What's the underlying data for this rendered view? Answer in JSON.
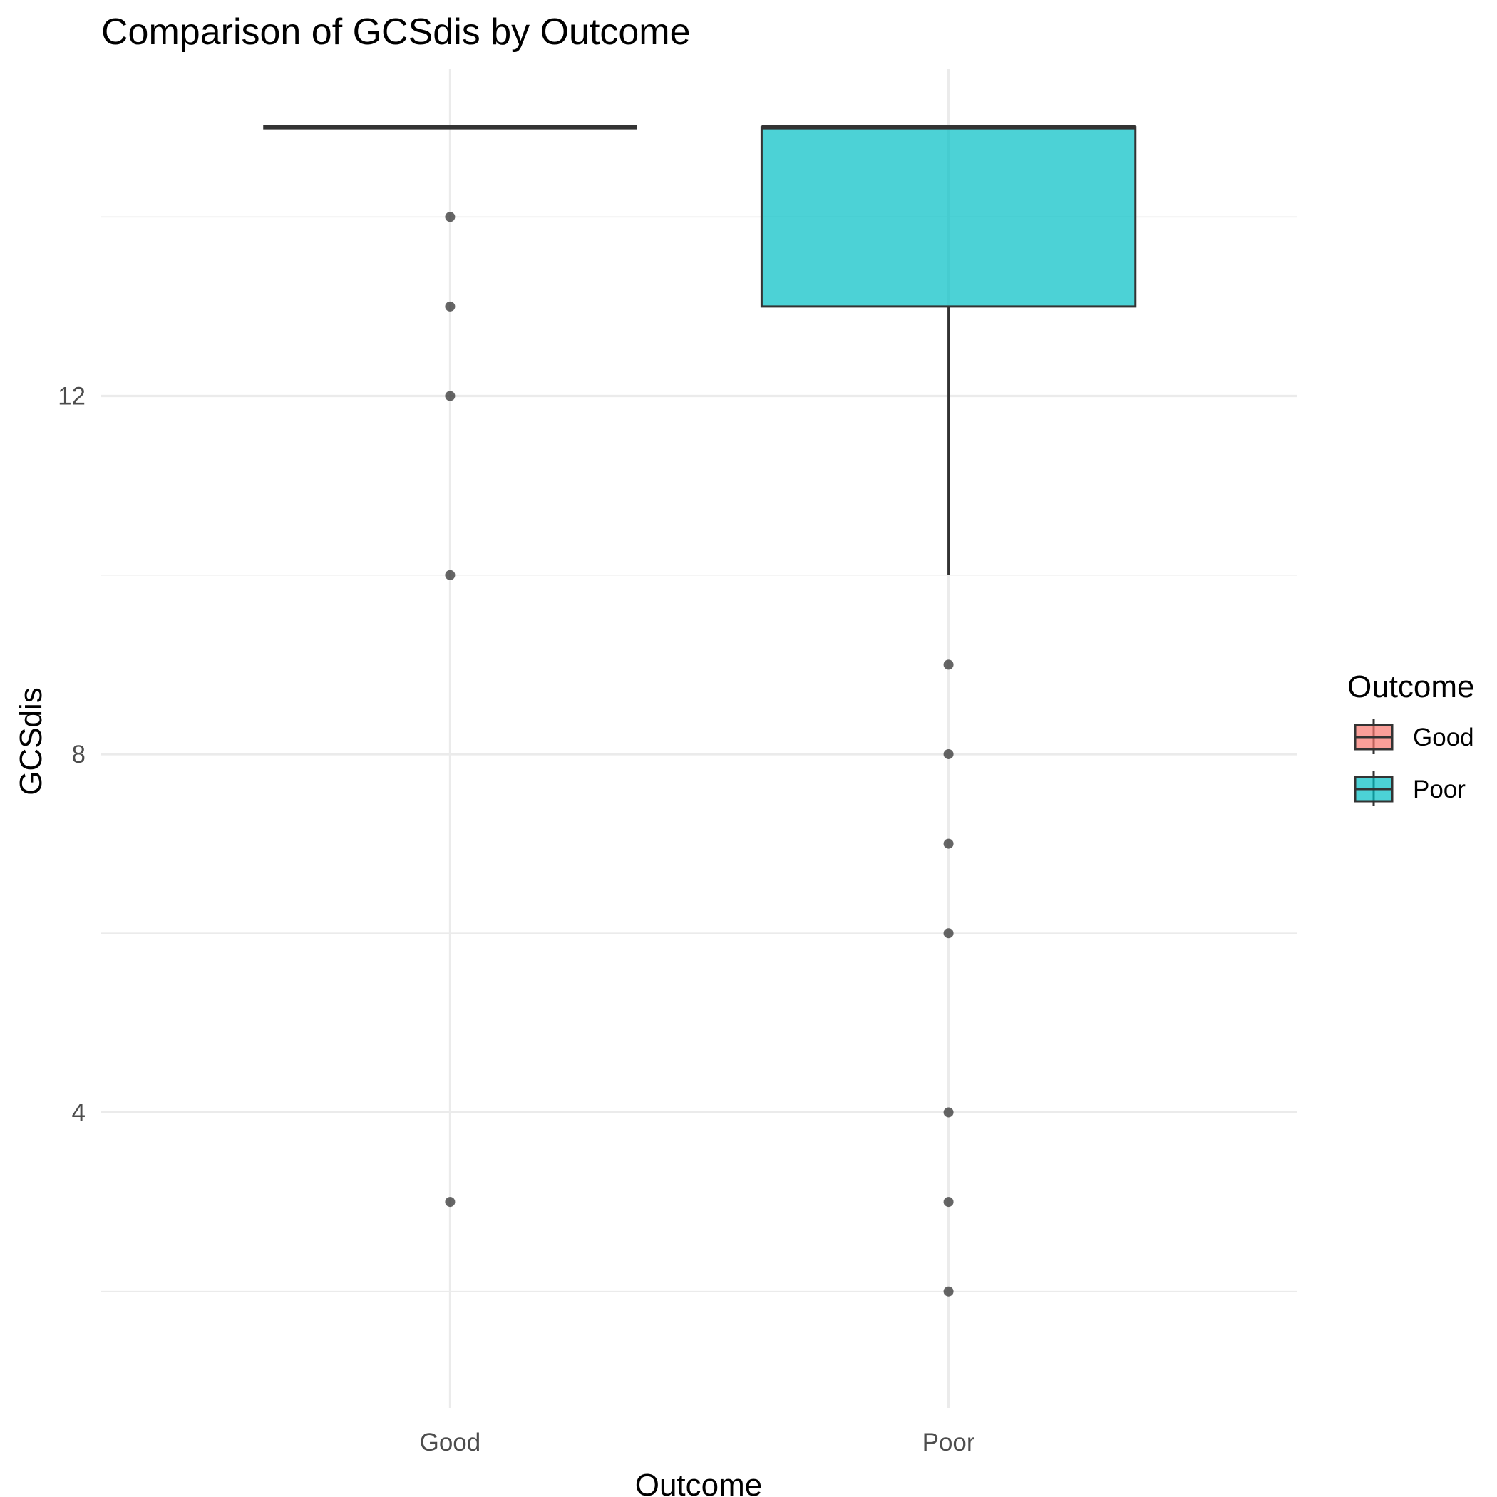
{
  "chart_data": {
    "type": "boxplot",
    "title": "Comparison of GCSdis by Outcome",
    "xlabel": "Outcome",
    "ylabel": "GCSdis",
    "categories": [
      "Good",
      "Poor"
    ],
    "y_ticks": [
      4,
      8,
      12
    ],
    "y_minor_ticks": [
      2,
      6,
      10,
      14
    ],
    "ylim": [
      0.7,
      15.65
    ],
    "grid": true,
    "legend": {
      "title": "Outcome",
      "placement": "right",
      "entries": [
        {
          "label": "Good",
          "color": "#f8766d"
        },
        {
          "label": "Poor",
          "color": "#00bfc4"
        }
      ]
    },
    "boxes": [
      {
        "category": "Good",
        "color": "#f8766d",
        "min": 15,
        "q1": 15,
        "median": 15,
        "q3": 15,
        "max": 15,
        "outliers": [
          14,
          13,
          12,
          10,
          3
        ]
      },
      {
        "category": "Poor",
        "color": "#00bfc4",
        "min": 10,
        "q1": 13,
        "median": 15,
        "q3": 15,
        "max": 15,
        "outliers": [
          9,
          8,
          7,
          6,
          4,
          3,
          2
        ]
      }
    ]
  }
}
